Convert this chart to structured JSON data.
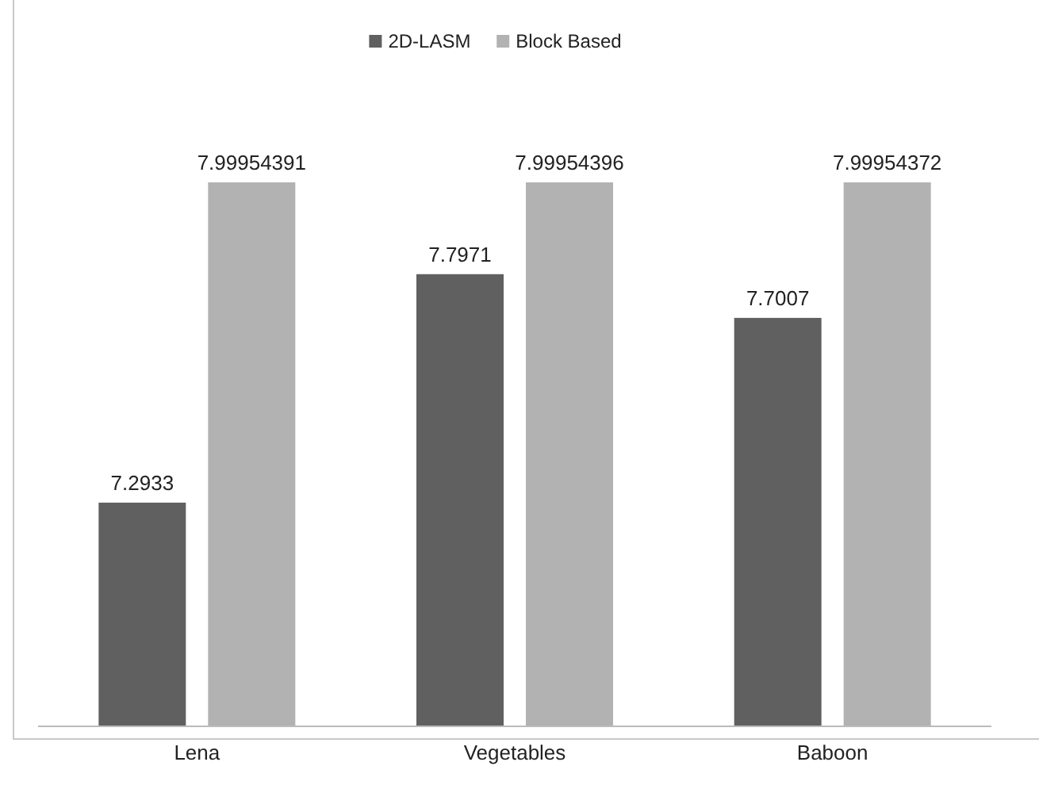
{
  "chart_data": {
    "type": "bar",
    "categories": [
      "Lena",
      "Vegetables",
      "Baboon"
    ],
    "series": [
      {
        "name": "2D-LASM",
        "color": "#606060",
        "values": [
          7.2933,
          7.7971,
          7.7007
        ]
      },
      {
        "name": "Block Based",
        "color": "#b2b2b2",
        "values": [
          7.99954391,
          7.99954396,
          7.99954372
        ]
      }
    ],
    "ylim": [
      6.8,
      7.99954396
    ],
    "data_labels": true,
    "legend": "top"
  }
}
